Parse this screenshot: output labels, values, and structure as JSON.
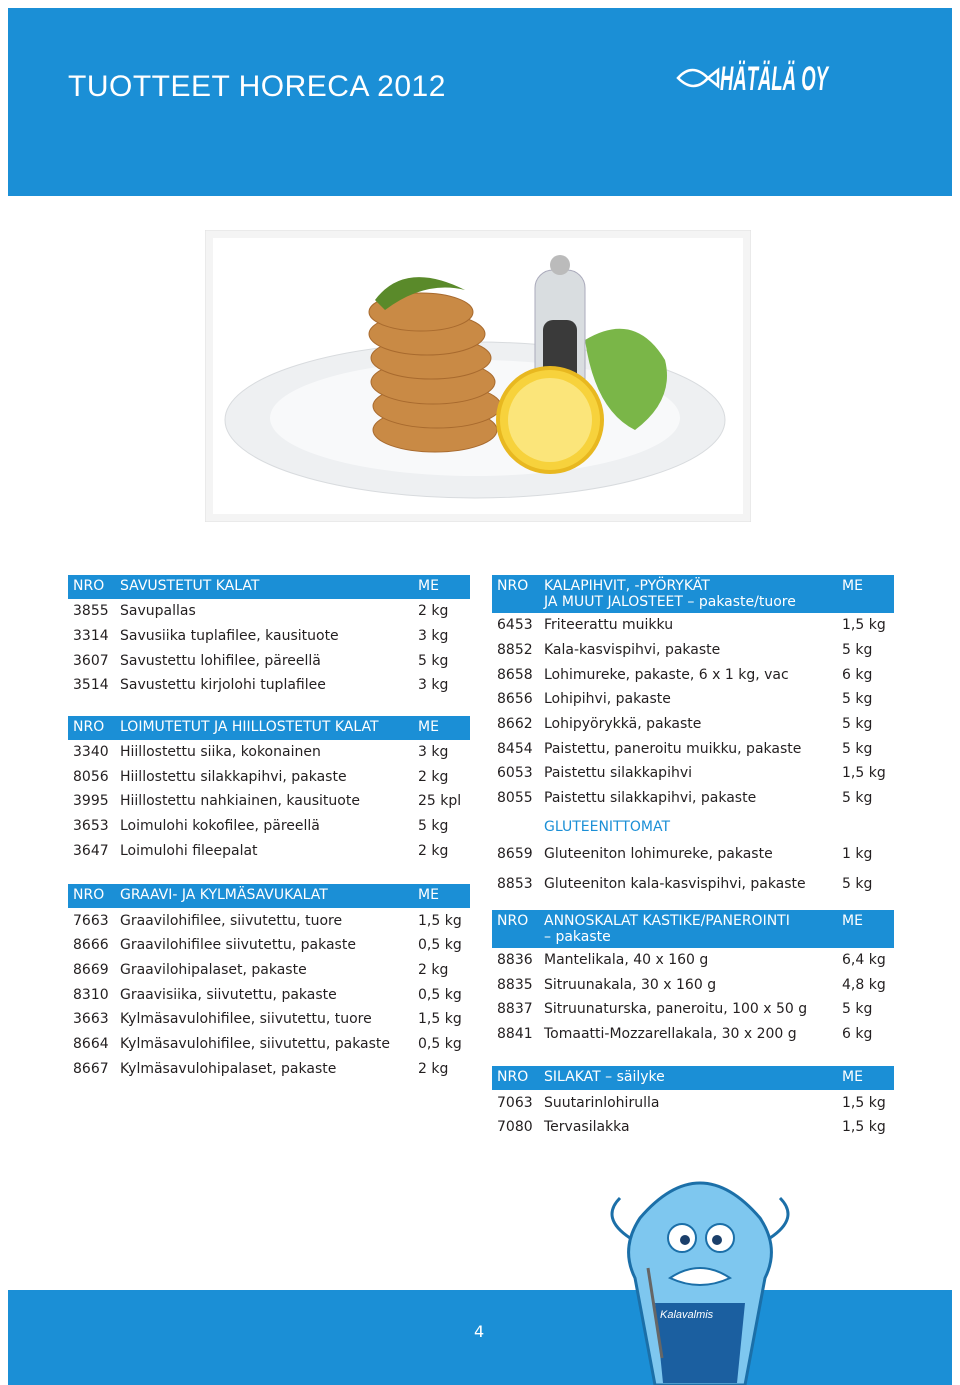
{
  "header": {
    "title": "TUOTTEET HORECA 2012",
    "logo": "HÄTÄLÄ OY"
  },
  "left": [
    {
      "header": {
        "nro": "NRO",
        "title": [
          "SAVUSTETUT KALAT"
        ],
        "me": "ME"
      },
      "rows": [
        [
          "3855",
          "Savupallas",
          "2 kg"
        ],
        [
          "3314",
          "Savusiika tuplafilee, kausituote",
          "3 kg"
        ],
        [
          "3607",
          "Savustettu lohifilee, päreellä",
          "5 kg"
        ],
        [
          "3514",
          "Savustettu kirjolohi tuplafilee",
          "3 kg"
        ]
      ]
    },
    {
      "header": {
        "nro": "NRO",
        "title": [
          "LOIMUTETUT JA HIILLOSTETUT KALAT"
        ],
        "me": "ME"
      },
      "rows": [
        [
          "3340",
          "Hiillostettu siika, kokonainen",
          "3 kg"
        ],
        [
          "8056",
          "Hiillostettu silakkapihvi, pakaste",
          "2 kg"
        ],
        [
          "3995",
          "Hiillostettu nahkiainen, kausituote",
          "25 kpl"
        ],
        [
          "3653",
          "Loimulohi kokofilee, päreellä",
          "5 kg"
        ],
        [
          "3647",
          "Loimulohi fileepalat",
          "2 kg"
        ]
      ]
    },
    {
      "header": {
        "nro": "NRO",
        "title": [
          "GRAAVI- JA KYLMÄSAVUKALAT"
        ],
        "me": "ME"
      },
      "rows": [
        [
          "7663",
          "Graavilohifilee, siivutettu, tuore",
          "1,5 kg"
        ],
        [
          "8666",
          "Graavilohifilee siivutettu, pakaste",
          "0,5 kg"
        ],
        [
          "8669",
          "Graavilohipalaset, pakaste",
          "2 kg"
        ],
        [
          "8310",
          "Graavisiika, siivutettu, pakaste",
          "0,5 kg"
        ],
        [
          "3663",
          "Kylmäsavulohifilee, siivutettu, tuore",
          "1,5 kg"
        ],
        [
          "8664",
          "Kylmäsavulohifilee, siivutettu, pakaste",
          "0,5 kg"
        ],
        [
          "8667",
          "Kylmäsavulohipalaset, pakaste",
          "2 kg"
        ]
      ]
    }
  ],
  "right": [
    {
      "header": {
        "nro": "NRO",
        "title": [
          "KALAPIHVIT, -PYÖRYKÄT",
          "JA MUUT JALOSTEET – pakaste/tuore"
        ],
        "me": "ME"
      },
      "rows": [
        [
          "6453",
          "Friteerattu muikku",
          "1,5 kg"
        ],
        [
          "8852",
          "Kala-kasvispihvi, pakaste",
          "5 kg"
        ],
        [
          "8658",
          "Lohimureke, pakaste, 6 x 1 kg, vac",
          "6 kg"
        ],
        [
          "8656",
          "Lohipihvi, pakaste",
          "5 kg"
        ],
        [
          "8662",
          "Lohipyörykkä, pakaste",
          "5 kg"
        ],
        [
          "8454",
          "Paistettu, paneroitu muikku, pakaste",
          "5 kg"
        ],
        [
          "6053",
          "Paistettu silakkapihvi",
          "1,5 kg"
        ],
        [
          "8055",
          "Paistettu silakkapihvi, pakaste",
          "5 kg"
        ]
      ],
      "subheading": "GLUTEENITTOMAT",
      "subrows": [
        [
          "8659",
          "Gluteeniton lohimureke, pakaste",
          "1 kg"
        ],
        [
          "8853",
          "Gluteeniton kala-kasvispihvi, pakaste",
          "5 kg"
        ]
      ]
    },
    {
      "header": {
        "nro": "NRO",
        "title": [
          "ANNOSKALAT KASTIKE/PANEROINTI",
          "– pakaste"
        ],
        "me": "ME"
      },
      "rows": [
        [
          "8836",
          "Mantelikala, 40 x 160 g",
          "6,4 kg"
        ],
        [
          "8835",
          "Sitruunakala, 30 x 160 g",
          "4,8 kg"
        ],
        [
          "8837",
          "Sitruunaturska, paneroitu, 100 x 50 g",
          "5 kg"
        ],
        [
          "8841",
          "Tomaatti-Mozzarellakala, 30 x 200 g",
          "6 kg"
        ]
      ]
    },
    {
      "header": {
        "nro": "NRO",
        "title": [
          "SILAKAT – säilyke"
        ],
        "me": "ME"
      },
      "rows": [
        [
          "7063",
          "Suutarinlohirulla",
          "1,5 kg"
        ],
        [
          "7080",
          "Tervasilakka",
          "1,5 kg"
        ]
      ]
    }
  ],
  "mascot": {
    "label": "Kalavalmis"
  },
  "footer": {
    "page": "4"
  }
}
